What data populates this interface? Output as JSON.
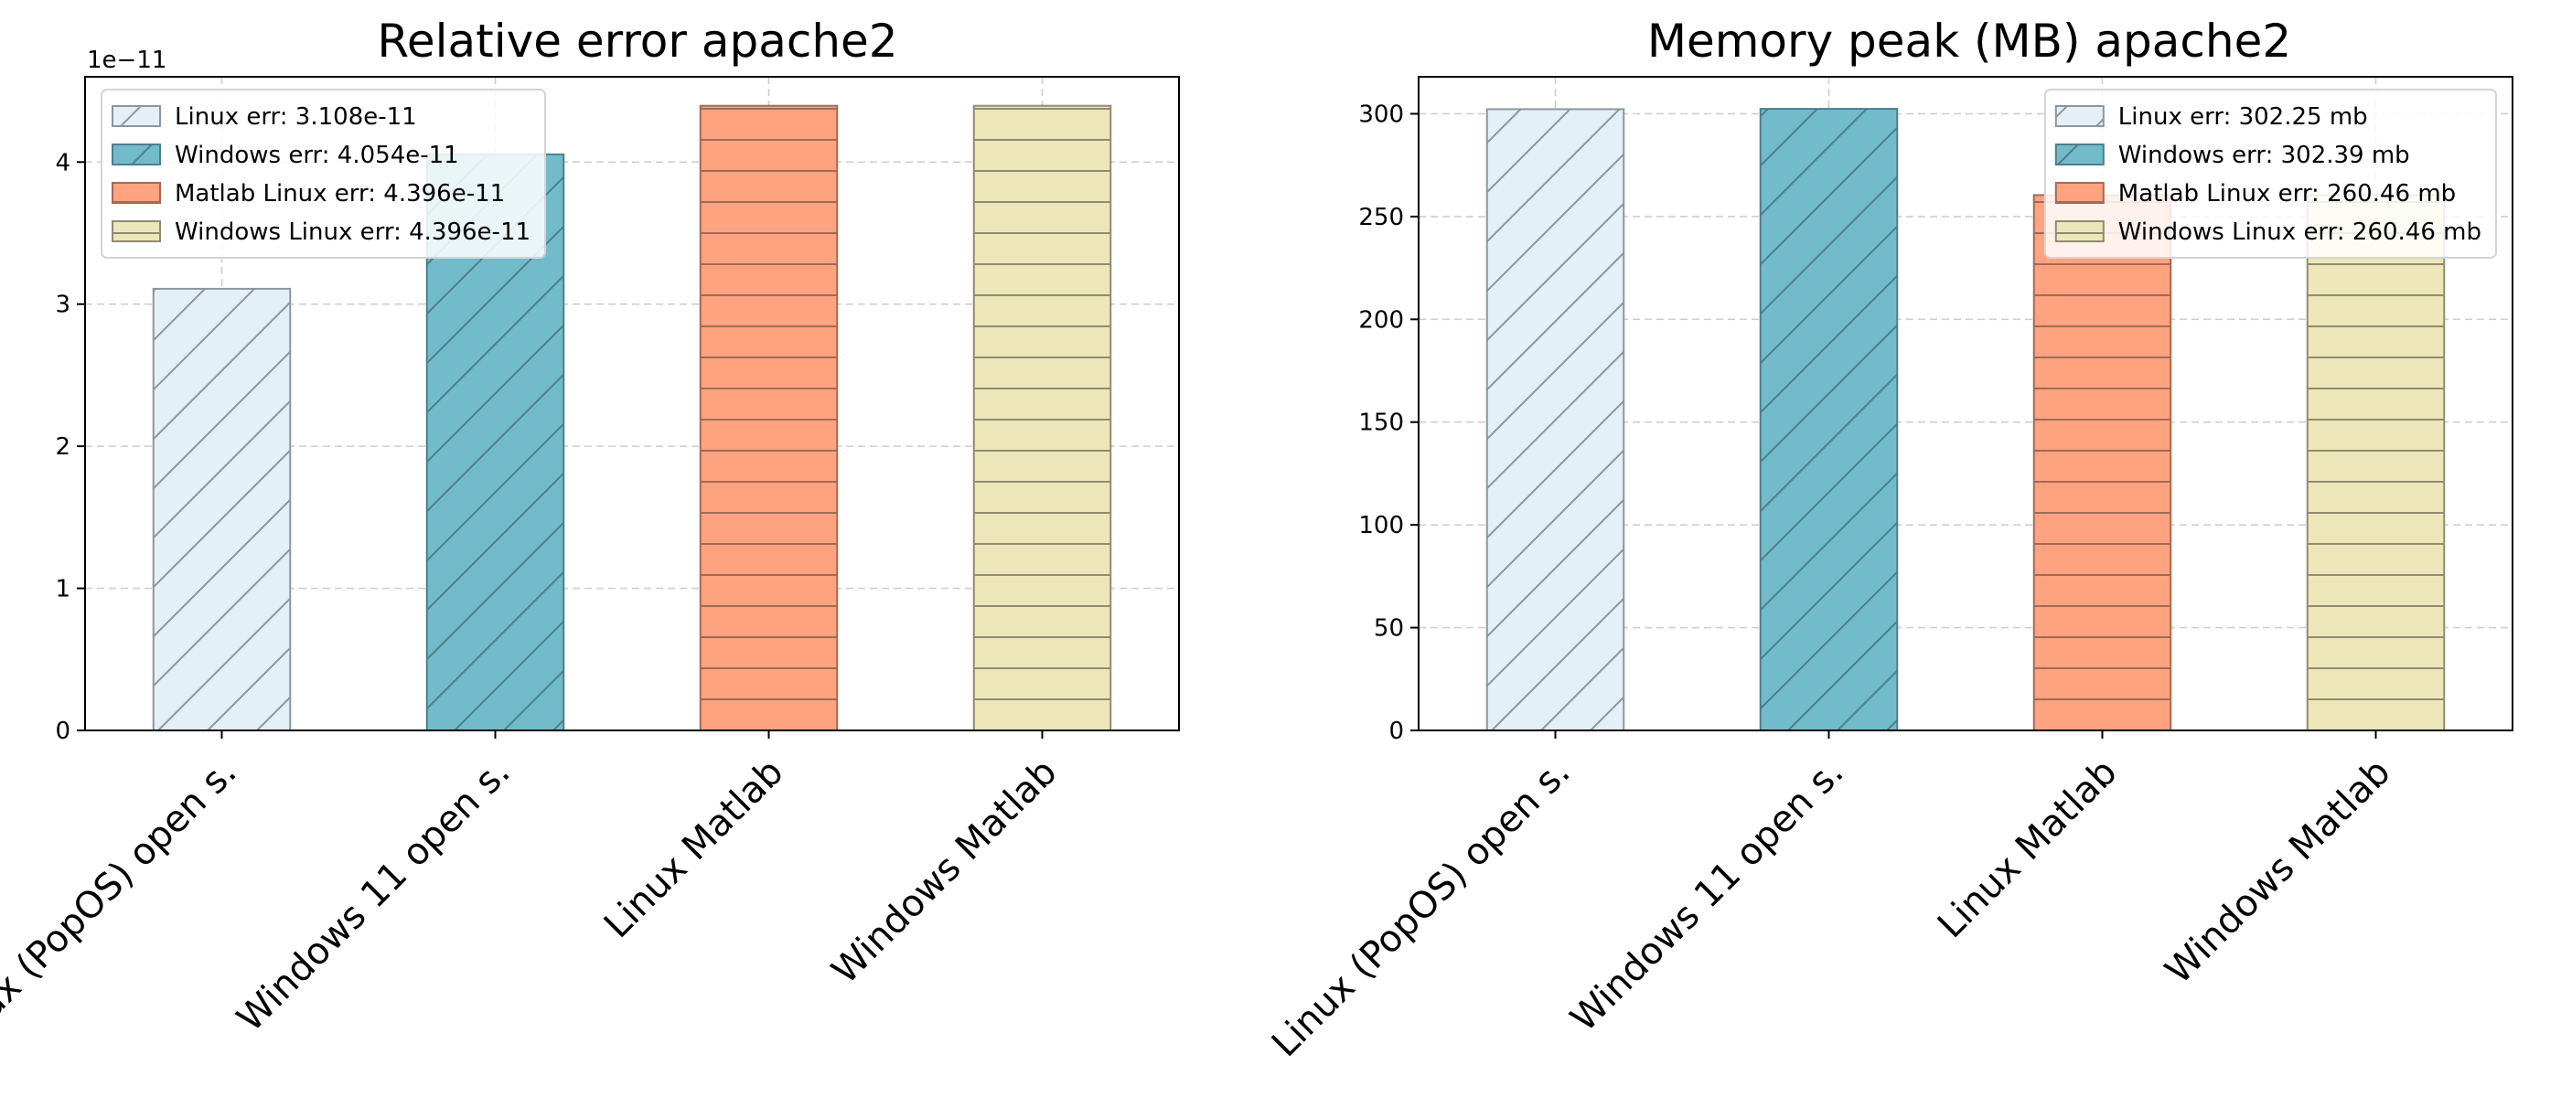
{
  "chart_data": [
    {
      "type": "bar",
      "title": "Relative error apache2",
      "categories": [
        "Linux (PopOS) open s.",
        "Windows 11 open s.",
        "Linux Matlab",
        "Windows Matlab"
      ],
      "values": [
        3.108e-11,
        4.054e-11,
        4.396e-11,
        4.396e-11
      ],
      "offset_text": "1e−11",
      "ylim": [
        0,
        4.6e-11
      ],
      "yticks": [
        0,
        1e-11,
        2e-11,
        3e-11,
        4e-11
      ],
      "ytick_labels": [
        "0",
        "1",
        "2",
        "3",
        "4"
      ],
      "grid": true,
      "legend_placement": "upper left",
      "legend": [
        "Linux err: 3.108e-11",
        "Windows err: 4.054e-11",
        "Matlab Linux err: 4.396e-11",
        "Windows Linux err: 4.396e-11"
      ]
    },
    {
      "type": "bar",
      "title": "Memory peak (MB) apache2",
      "categories": [
        "Linux (PopOS) open s.",
        "Windows 11 open s.",
        "Linux Matlab",
        "Windows Matlab"
      ],
      "values": [
        302.25,
        302.39,
        260.46,
        260.46
      ],
      "offset_text": "",
      "ylim": [
        0,
        318
      ],
      "yticks": [
        0,
        50,
        100,
        150,
        200,
        250,
        300
      ],
      "ytick_labels": [
        "0",
        "50",
        "100",
        "150",
        "200",
        "250",
        "300"
      ],
      "grid": true,
      "legend_placement": "upper right",
      "legend": [
        "Linux err: 302.25 mb",
        "Windows err: 302.39 mb",
        "Matlab Linux err: 260.46 mb",
        "Windows Linux err: 260.46 mb"
      ]
    }
  ],
  "bar_styles": [
    {
      "fill": "#e4f0f7",
      "edge": "#8c969c",
      "hatch": "diagonal",
      "hatch_color": "#8c969c"
    },
    {
      "fill": "#72bbca",
      "edge": "#4c7e89",
      "hatch": "diagonal",
      "hatch_color": "#4c7e89"
    },
    {
      "fill": "#fea280",
      "edge": "#a06b56",
      "hatch": "horizontal",
      "hatch_color": "#a06b56"
    },
    {
      "fill": "#ede6b8",
      "edge": "#8f8b72",
      "hatch": "horizontal",
      "hatch_color": "#8f8b72"
    }
  ]
}
